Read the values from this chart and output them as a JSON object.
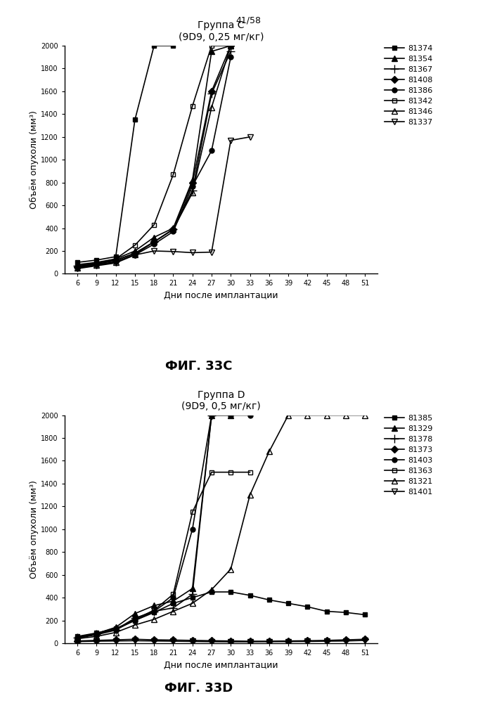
{
  "page_label": "41/58",
  "chart_C": {
    "title_line1": "Группа С",
    "title_line2": "(9D9, 0,25 мг/кг)",
    "xlabel": "Дни после имплантации",
    "ylabel": "Объём опухоли (мм³)",
    "ylim": [
      0,
      2000
    ],
    "yticks": [
      0,
      200,
      400,
      600,
      800,
      1000,
      1200,
      1400,
      1600,
      1800,
      2000
    ],
    "xticks": [
      6,
      9,
      12,
      15,
      18,
      21,
      24,
      27,
      30,
      33,
      36,
      39,
      42,
      45,
      48,
      51
    ],
    "series": [
      {
        "label": "81374",
        "marker": "s",
        "fillstyle": "full",
        "x": [
          6,
          9,
          12,
          15,
          18,
          21
        ],
        "y": [
          100,
          120,
          150,
          1350,
          2000,
          2000
        ]
      },
      {
        "label": "81354",
        "marker": "^",
        "fillstyle": "full",
        "x": [
          6,
          9,
          12,
          15,
          18,
          21,
          24,
          27,
          30
        ],
        "y": [
          80,
          100,
          130,
          200,
          320,
          400,
          820,
          1950,
          2000
        ]
      },
      {
        "label": "81367",
        "marker": "+",
        "fillstyle": "full",
        "x": [
          6,
          9,
          12,
          15,
          18,
          21,
          24,
          27,
          30
        ],
        "y": [
          70,
          95,
          120,
          180,
          280,
          390,
          730,
          1580,
          1950
        ]
      },
      {
        "label": "81408",
        "marker": "D",
        "fillstyle": "full",
        "x": [
          6,
          9,
          12,
          15,
          18,
          21,
          24,
          27,
          30
        ],
        "y": [
          60,
          85,
          115,
          180,
          280,
          390,
          800,
          1600,
          2000
        ]
      },
      {
        "label": "81386",
        "marker": "o",
        "fillstyle": "full",
        "x": [
          6,
          9,
          12,
          15,
          18,
          21,
          24,
          27,
          30
        ],
        "y": [
          55,
          80,
          105,
          165,
          260,
          370,
          770,
          1080,
          1900
        ]
      },
      {
        "label": "81342",
        "marker": "s",
        "fillstyle": "none",
        "x": [
          6,
          9,
          12,
          15,
          18,
          21,
          24,
          27,
          30
        ],
        "y": [
          65,
          90,
          130,
          250,
          430,
          870,
          1470,
          2000,
          2000
        ]
      },
      {
        "label": "81346",
        "marker": "^",
        "fillstyle": "none",
        "x": [
          6,
          9,
          12,
          15,
          18,
          21,
          24,
          27,
          30
        ],
        "y": [
          50,
          75,
          100,
          170,
          280,
          390,
          710,
          1460,
          2000
        ]
      },
      {
        "label": "81337",
        "marker": "v",
        "fillstyle": "none",
        "x": [
          6,
          9,
          12,
          15,
          18,
          21,
          24,
          27,
          30,
          33
        ],
        "y": [
          45,
          70,
          95,
          165,
          200,
          195,
          185,
          190,
          1170,
          1200
        ]
      }
    ],
    "fig_label": "ФИГ. 33С"
  },
  "chart_D": {
    "title_line1": "Группа D",
    "title_line2": "(9D9, 0,5 мг/кг)",
    "xlabel": "Дни после имплантации",
    "ylabel": "Объём опухоли (мм³)",
    "ylim": [
      0,
      2000
    ],
    "yticks": [
      0,
      200,
      400,
      600,
      800,
      1000,
      1200,
      1400,
      1600,
      1800,
      2000
    ],
    "xticks": [
      6,
      9,
      12,
      15,
      18,
      21,
      24,
      27,
      30,
      33,
      36,
      39,
      42,
      45,
      48,
      51
    ],
    "series": [
      {
        "label": "81385",
        "marker": "s",
        "fillstyle": "full",
        "x": [
          6,
          9,
          12,
          15,
          18,
          21,
          24,
          27,
          30,
          33,
          36,
          39,
          42,
          45,
          48,
          51
        ],
        "y": [
          60,
          90,
          130,
          200,
          270,
          350,
          400,
          450,
          450,
          420,
          380,
          350,
          320,
          280,
          270,
          250
        ]
      },
      {
        "label": "81329",
        "marker": "^",
        "fillstyle": "full",
        "x": [
          6,
          9,
          12,
          15,
          18,
          21,
          24,
          27,
          30
        ],
        "y": [
          55,
          85,
          140,
          260,
          330,
          370,
          480,
          2000,
          2000
        ]
      },
      {
        "label": "81378",
        "marker": "+",
        "fillstyle": "full",
        "x": [
          6,
          9,
          12,
          15,
          18,
          21,
          24,
          27
        ],
        "y": [
          50,
          80,
          120,
          220,
          280,
          310,
          430,
          2000
        ]
      },
      {
        "label": "81373",
        "marker": "D",
        "fillstyle": "full",
        "x": [
          6,
          9,
          12,
          15,
          18,
          21,
          24,
          27,
          30,
          33,
          36,
          39,
          42,
          45,
          48,
          51
        ],
        "y": [
          20,
          25,
          30,
          35,
          30,
          28,
          25,
          22,
          20,
          18,
          18,
          20,
          22,
          25,
          30,
          35
        ]
      },
      {
        "label": "81403",
        "marker": "o",
        "fillstyle": "full",
        "x": [
          6,
          9,
          12,
          15,
          18,
          21,
          24,
          27,
          30,
          33
        ],
        "y": [
          50,
          80,
          120,
          200,
          280,
          400,
          1000,
          2000,
          2000,
          2000
        ]
      },
      {
        "label": "81363",
        "marker": "s",
        "fillstyle": "none",
        "x": [
          6,
          9,
          12,
          15,
          18,
          21,
          24,
          27,
          30,
          33
        ],
        "y": [
          45,
          75,
          115,
          210,
          290,
          430,
          1150,
          1500,
          1500,
          1500
        ]
      },
      {
        "label": "81321",
        "marker": "^",
        "fillstyle": "none",
        "x": [
          6,
          9,
          12,
          15,
          18,
          21,
          24,
          27,
          30,
          33,
          36,
          39,
          42,
          45,
          48,
          51
        ],
        "y": [
          40,
          60,
          95,
          160,
          210,
          280,
          350,
          470,
          650,
          1300,
          1680,
          2000,
          2000,
          2000,
          2000,
          2000
        ]
      },
      {
        "label": "81401",
        "marker": "v",
        "fillstyle": "none",
        "x": [
          6,
          9,
          12,
          15,
          18,
          21,
          24,
          27,
          30,
          33,
          36,
          39,
          42,
          45,
          48,
          51
        ],
        "y": [
          15,
          18,
          20,
          22,
          20,
          18,
          16,
          14,
          13,
          13,
          14,
          15,
          16,
          18,
          20,
          25
        ]
      }
    ],
    "fig_label": "ФИГ. 33D"
  },
  "background_color": "#ffffff",
  "font_size": 9,
  "title_font_size": 10
}
